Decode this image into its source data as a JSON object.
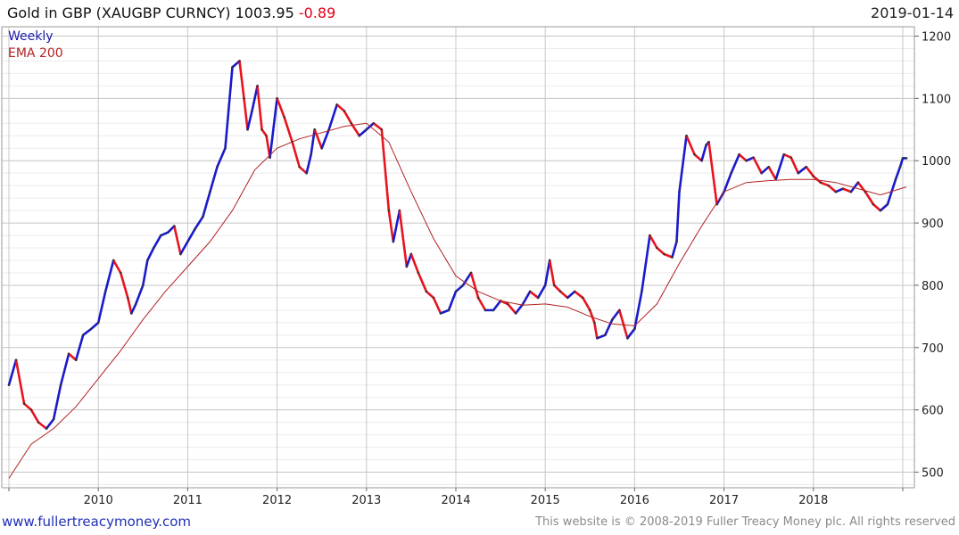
{
  "header": {
    "title": "Gold in GBP (XAUGBP CURNCY) 1003.95",
    "change": "-0.89",
    "date": "2019-01-14"
  },
  "legend": {
    "weekly": "Weekly",
    "ema": "EMA 200"
  },
  "footer": {
    "site": "www.fullertreacymoney.com",
    "copyright": "This website is © 2008-2019 Fuller Treacy Money plc. All rights reserved"
  },
  "colors": {
    "up": "#1a1acc",
    "down": "#e8141e",
    "ema": "#b22222",
    "grid": "#cfcfcf",
    "weekly_label": "#1a1aaa",
    "ema_label": "#b22222"
  },
  "chart_data": {
    "type": "line",
    "subtype": "weekly price bars with moving average",
    "title": "Gold in GBP (XAUGBP CURNCY) 1003.95 -0.89",
    "x_ticks": [
      "2010",
      "2011",
      "2012",
      "2013",
      "2014",
      "2015",
      "2016",
      "2017",
      "2018"
    ],
    "xlim": [
      2009.0,
      2019.04
    ],
    "ylim": [
      475,
      1215
    ],
    "y_ticks": [
      500,
      600,
      700,
      800,
      900,
      1000,
      1100,
      1200
    ],
    "grid": true,
    "legend_position": "top-left",
    "series": [
      {
        "name": "Weekly",
        "x": [
          2009.0,
          2009.08,
          2009.17,
          2009.25,
          2009.33,
          2009.42,
          2009.5,
          2009.58,
          2009.67,
          2009.75,
          2009.83,
          2009.92,
          2010.0,
          2010.08,
          2010.17,
          2010.25,
          2010.33,
          2010.37,
          2010.42,
          2010.5,
          2010.55,
          2010.62,
          2010.7,
          2010.78,
          2010.85,
          2010.92,
          2011.0,
          2011.08,
          2011.17,
          2011.25,
          2011.33,
          2011.42,
          2011.5,
          2011.58,
          2011.63,
          2011.67,
          2011.72,
          2011.78,
          2011.83,
          2011.88,
          2011.92,
          2012.0,
          2012.08,
          2012.17,
          2012.25,
          2012.33,
          2012.38,
          2012.42,
          2012.5,
          2012.58,
          2012.67,
          2012.75,
          2012.83,
          2012.92,
          2013.0,
          2013.08,
          2013.17,
          2013.25,
          2013.3,
          2013.37,
          2013.45,
          2013.5,
          2013.58,
          2013.67,
          2013.75,
          2013.83,
          2013.92,
          2014.0,
          2014.08,
          2014.17,
          2014.25,
          2014.33,
          2014.42,
          2014.5,
          2014.58,
          2014.67,
          2014.75,
          2014.83,
          2014.92,
          2015.0,
          2015.05,
          2015.1,
          2015.17,
          2015.25,
          2015.33,
          2015.42,
          2015.5,
          2015.55,
          2015.58,
          2015.67,
          2015.75,
          2015.83,
          2015.92,
          2016.0,
          2016.08,
          2016.17,
          2016.25,
          2016.33,
          2016.42,
          2016.47,
          2016.5,
          2016.58,
          2016.67,
          2016.75,
          2016.8,
          2016.83,
          2016.92,
          2017.0,
          2017.08,
          2017.17,
          2017.25,
          2017.33,
          2017.42,
          2017.5,
          2017.58,
          2017.67,
          2017.75,
          2017.83,
          2017.92,
          2018.0,
          2018.08,
          2018.17,
          2018.25,
          2018.33,
          2018.42,
          2018.5,
          2018.58,
          2018.67,
          2018.75,
          2018.83,
          2018.92,
          2018.97,
          2019.0,
          2019.04
        ],
        "values": [
          640,
          680,
          610,
          600,
          580,
          570,
          585,
          640,
          690,
          680,
          720,
          730,
          740,
          790,
          840,
          820,
          780,
          755,
          770,
          800,
          840,
          860,
          880,
          885,
          895,
          850,
          870,
          890,
          910,
          950,
          990,
          1020,
          1150,
          1160,
          1100,
          1050,
          1080,
          1120,
          1050,
          1040,
          1005,
          1100,
          1070,
          1030,
          990,
          980,
          1010,
          1050,
          1020,
          1050,
          1090,
          1080,
          1060,
          1040,
          1050,
          1060,
          1050,
          920,
          870,
          920,
          830,
          850,
          820,
          790,
          780,
          755,
          760,
          790,
          800,
          820,
          780,
          760,
          760,
          775,
          770,
          755,
          770,
          790,
          780,
          800,
          840,
          800,
          790,
          780,
          790,
          780,
          760,
          740,
          715,
          720,
          745,
          760,
          715,
          730,
          790,
          880,
          860,
          850,
          845,
          870,
          950,
          1040,
          1010,
          1000,
          1025,
          1030,
          930,
          950,
          980,
          1010,
          1000,
          1005,
          980,
          990,
          970,
          1010,
          1005,
          980,
          990,
          975,
          965,
          960,
          950,
          955,
          950,
          965,
          950,
          930,
          920,
          930,
          970,
          990,
          1003.95,
          1004
        ]
      },
      {
        "name": "EMA 200",
        "x": [
          2009.0,
          2009.25,
          2009.5,
          2009.75,
          2010.0,
          2010.25,
          2010.5,
          2010.75,
          2011.0,
          2011.25,
          2011.5,
          2011.75,
          2012.0,
          2012.25,
          2012.5,
          2012.75,
          2013.0,
          2013.25,
          2013.5,
          2013.75,
          2014.0,
          2014.25,
          2014.5,
          2014.75,
          2015.0,
          2015.25,
          2015.5,
          2015.75,
          2016.0,
          2016.25,
          2016.5,
          2016.75,
          2017.0,
          2017.25,
          2017.5,
          2017.75,
          2018.0,
          2018.25,
          2018.5,
          2018.75,
          2019.04
        ],
        "values": [
          490,
          545,
          570,
          605,
          650,
          695,
          745,
          790,
          830,
          870,
          920,
          985,
          1020,
          1035,
          1045,
          1055,
          1060,
          1030,
          950,
          875,
          815,
          790,
          775,
          768,
          770,
          765,
          750,
          738,
          735,
          770,
          835,
          895,
          950,
          965,
          968,
          970,
          970,
          965,
          955,
          945,
          958
        ]
      }
    ]
  }
}
